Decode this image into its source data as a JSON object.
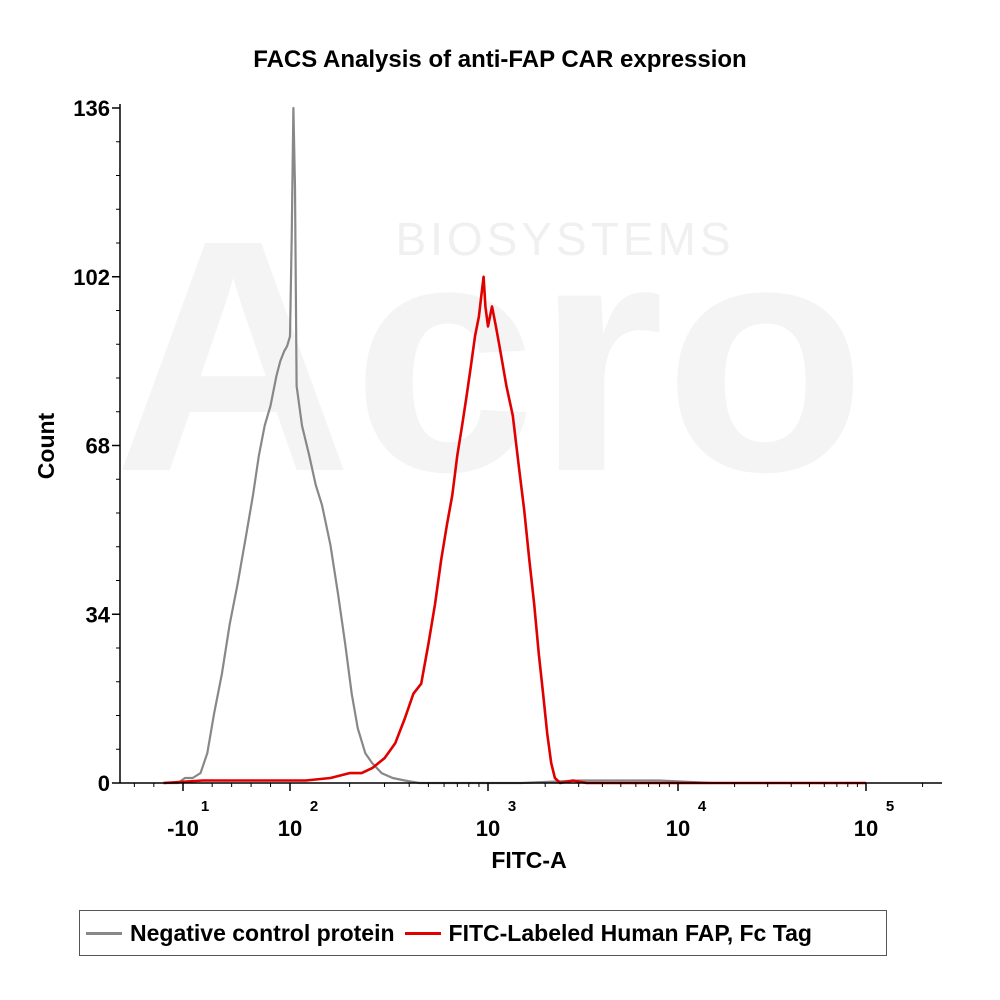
{
  "chart_data": {
    "type": "line",
    "title": "FACS Analysis of anti-FAP CAR expression",
    "xlabel": "FITC-A",
    "ylabel": "Count",
    "xscale": "biexponential (log)",
    "ylim": [
      0,
      136
    ],
    "yticks": [
      {
        "value": 0,
        "label": "0"
      },
      {
        "value": 34,
        "label": "34"
      },
      {
        "value": 68,
        "label": "68"
      },
      {
        "value": 102,
        "label": "102"
      },
      {
        "value": 136,
        "label": "136"
      }
    ],
    "xticks": [
      {
        "value": -10,
        "base": "-10",
        "exp": "1"
      },
      {
        "value": 100,
        "base": "10",
        "exp": "2"
      },
      {
        "value": 1000,
        "base": "10",
        "exp": "3"
      },
      {
        "value": 10000,
        "base": "10",
        "exp": "4"
      },
      {
        "value": 100000,
        "base": "10",
        "exp": "5"
      }
    ],
    "grid": false,
    "legend_position": "bottom",
    "watermark": "Acro BIOSYSTEMS",
    "series": [
      {
        "name": "Negative control protein",
        "color": "#888888",
        "points": [
          [
            -30,
            0
          ],
          [
            -15,
            0
          ],
          [
            -8,
            1
          ],
          [
            0,
            1
          ],
          [
            8,
            2
          ],
          [
            15,
            6
          ],
          [
            22,
            14
          ],
          [
            30,
            22
          ],
          [
            38,
            32
          ],
          [
            46,
            40
          ],
          [
            55,
            50
          ],
          [
            62,
            58
          ],
          [
            68,
            66
          ],
          [
            74,
            72
          ],
          [
            80,
            76
          ],
          [
            86,
            82
          ],
          [
            90,
            85
          ],
          [
            94,
            87
          ],
          [
            97,
            88
          ],
          [
            100,
            90
          ],
          [
            102,
            110
          ],
          [
            104,
            136
          ],
          [
            106,
            120
          ],
          [
            108,
            80
          ],
          [
            115,
            72
          ],
          [
            125,
            66
          ],
          [
            135,
            60
          ],
          [
            145,
            56
          ],
          [
            160,
            48
          ],
          [
            175,
            38
          ],
          [
            190,
            28
          ],
          [
            205,
            18
          ],
          [
            220,
            11
          ],
          [
            240,
            6
          ],
          [
            260,
            4
          ],
          [
            290,
            2
          ],
          [
            330,
            1
          ],
          [
            380,
            0.5
          ],
          [
            450,
            0
          ],
          [
            800,
            0
          ],
          [
            1500,
            0
          ],
          [
            3000,
            0.5
          ],
          [
            5000,
            0.5
          ],
          [
            8000,
            0.5
          ],
          [
            15000,
            0
          ]
        ]
      },
      {
        "name": "FITC-Labeled Human FAP, Fc Tag",
        "color": "#e00000",
        "points": [
          [
            -30,
            0
          ],
          [
            10,
            0.5
          ],
          [
            60,
            0.5
          ],
          [
            120,
            0.5
          ],
          [
            160,
            1
          ],
          [
            200,
            2
          ],
          [
            230,
            2
          ],
          [
            260,
            3
          ],
          [
            300,
            5
          ],
          [
            340,
            8
          ],
          [
            380,
            13
          ],
          [
            420,
            18
          ],
          [
            460,
            20
          ],
          [
            500,
            28
          ],
          [
            540,
            36
          ],
          [
            580,
            45
          ],
          [
            620,
            52
          ],
          [
            660,
            58
          ],
          [
            700,
            66
          ],
          [
            740,
            72
          ],
          [
            780,
            78
          ],
          [
            820,
            84
          ],
          [
            860,
            90
          ],
          [
            900,
            94
          ],
          [
            930,
            99
          ],
          [
            950,
            102
          ],
          [
            970,
            96
          ],
          [
            1000,
            92
          ],
          [
            1050,
            96
          ],
          [
            1100,
            92
          ],
          [
            1150,
            88
          ],
          [
            1250,
            80
          ],
          [
            1350,
            74
          ],
          [
            1450,
            64
          ],
          [
            1550,
            55
          ],
          [
            1650,
            45
          ],
          [
            1750,
            36
          ],
          [
            1850,
            26
          ],
          [
            1950,
            18
          ],
          [
            2050,
            10
          ],
          [
            2150,
            4
          ],
          [
            2250,
            1
          ],
          [
            2400,
            0
          ],
          [
            2800,
            0.5
          ],
          [
            3300,
            0
          ],
          [
            6000,
            0
          ],
          [
            100000,
            0
          ]
        ]
      }
    ]
  }
}
